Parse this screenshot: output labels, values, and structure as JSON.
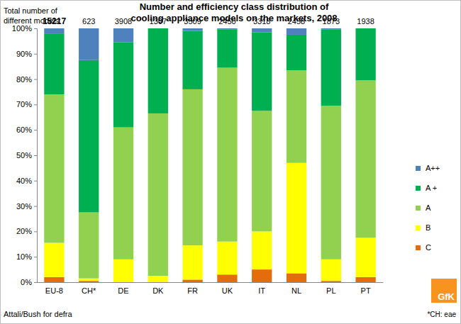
{
  "chart_data": {
    "type": "bar",
    "stacked": true,
    "title": [
      "Number and efficiency class distribution of",
      "cooling appliance models on the markets, 2008"
    ],
    "categories": [
      "EU-8",
      "CH*",
      "DE",
      "DK",
      "FR",
      "UK",
      "IT",
      "NL",
      "PL",
      "PT"
    ],
    "series": [
      {
        "name": "C",
        "color": "#e46c0a",
        "values": [
          2,
          0.5,
          0,
          0,
          1,
          3,
          5,
          3.5,
          0.5,
          2
        ]
      },
      {
        "name": "B",
        "color": "#ffff00",
        "values": [
          13.5,
          1,
          9,
          2.5,
          13.5,
          13,
          15,
          43.5,
          8.5,
          15.5
        ]
      },
      {
        "name": "A",
        "color": "#92d050",
        "values": [
          58.5,
          26,
          52,
          64,
          61.5,
          68.5,
          47.5,
          36.5,
          60.5,
          62
        ]
      },
      {
        "name": "A +",
        "color": "#00b050",
        "values": [
          24,
          60,
          33.5,
          33.5,
          23,
          15,
          31,
          14,
          30,
          20.5
        ]
      },
      {
        "name": "A++",
        "color": "#4f81bd",
        "values": [
          2,
          12.5,
          5.5,
          0,
          1,
          0.5,
          1.5,
          2.5,
          0.5,
          0
        ]
      }
    ],
    "ylim": [
      0,
      100
    ],
    "yticks": [
      {
        "value": 0,
        "label": "0%"
      },
      {
        "value": 10,
        "label": "10%"
      },
      {
        "value": 20,
        "label": "20%"
      },
      {
        "value": 30,
        "label": "30%"
      },
      {
        "value": 40,
        "label": "40%"
      },
      {
        "value": 50,
        "label": "50%"
      },
      {
        "value": 60,
        "label": "60%"
      },
      {
        "value": 70,
        "label": "70%"
      },
      {
        "value": 80,
        "label": "80%"
      },
      {
        "value": 90,
        "label": "90%"
      },
      {
        "value": 100,
        "label": "100%"
      }
    ],
    "grid": false,
    "legend": "right",
    "totals": {
      "label": [
        "Total number of",
        "different models:"
      ],
      "values": [
        15217,
        623,
        3908,
        1307,
        3509,
        2450,
        3318,
        2458,
        1873,
        1938
      ]
    },
    "source": "Attali/Bush for defra",
    "note": "*CH: eae",
    "logo": "GfK"
  }
}
